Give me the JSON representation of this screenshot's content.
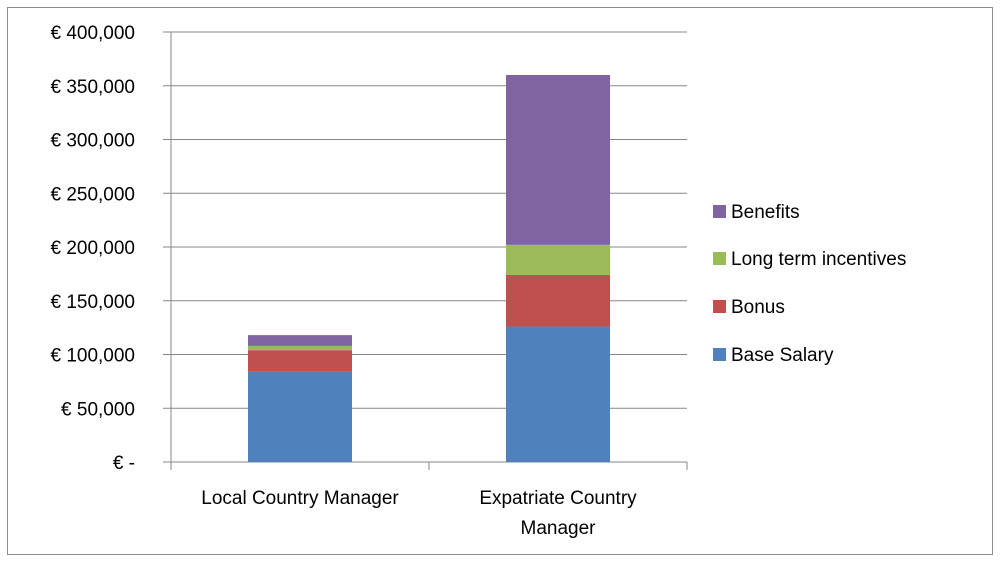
{
  "chart_data": {
    "type": "bar",
    "stacked": true,
    "categories": [
      "Local Country Manager",
      "Expatriate Country Manager"
    ],
    "category_lines": [
      [
        "Local Country Manager"
      ],
      [
        "Expatriate Country",
        "Manager"
      ]
    ],
    "series": [
      {
        "name": "Base Salary",
        "values": [
          84000,
          126000
        ],
        "color": "#4f81bd"
      },
      {
        "name": "Bonus",
        "values": [
          20000,
          48000
        ],
        "color": "#c0504d"
      },
      {
        "name": "Long term incentives",
        "values": [
          4000,
          28000
        ],
        "color": "#9bbb59"
      },
      {
        "name": "Benefits",
        "values": [
          10000,
          158000
        ],
        "color": "#8064a2"
      }
    ],
    "ylim": [
      0,
      400000
    ],
    "yticks": [
      0,
      50000,
      100000,
      150000,
      200000,
      250000,
      300000,
      350000,
      400000
    ],
    "ytick_labels": [
      "€ -",
      "€ 50,000",
      "€ 100,000",
      "€ 150,000",
      "€ 200,000",
      "€ 250,000",
      "€ 300,000",
      "€ 350,000",
      "€ 400,000"
    ],
    "grid": true,
    "legend_position": "right",
    "legend_order": [
      "Benefits",
      "Long term incentives",
      "Bonus",
      "Base Salary"
    ],
    "title": "",
    "xlabel": "",
    "ylabel": ""
  }
}
